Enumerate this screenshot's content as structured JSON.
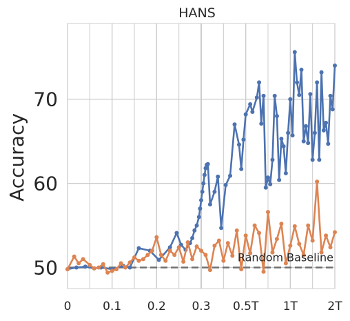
{
  "chart_data": {
    "type": "line",
    "title": "HANS",
    "ylabel": "Accuracy",
    "xlabel": "",
    "ylim": [
      47.5,
      79
    ],
    "yticks": [
      50,
      60,
      70
    ],
    "xtick_labels": [
      "0",
      "0.1",
      "0.2",
      "0.3",
      "0.5T",
      "1T",
      "2T"
    ],
    "xtick_positions": [
      0,
      2,
      4,
      6,
      8,
      10,
      12
    ],
    "xlim": [
      0,
      12
    ],
    "grid": true,
    "baseline": {
      "label": "Random Baseline",
      "value": 50
    },
    "colors": {
      "blue": "#4c72b0",
      "orange": "#dd8452",
      "baseline": "#707070",
      "grid": "#cccccc"
    },
    "series": [
      {
        "color": "#4c72b0",
        "x": [
          0.0,
          0.4,
          0.8,
          1.2,
          1.5,
          2.0,
          2.5,
          2.8,
          3.2,
          3.7,
          4.1,
          4.6,
          4.9,
          5.1,
          5.3,
          5.5,
          5.6,
          5.7,
          5.8,
          5.9,
          5.95,
          6.0,
          6.05,
          6.1,
          6.15,
          6.2,
          6.25,
          6.3,
          6.4,
          6.6,
          6.75,
          6.9,
          7.1,
          7.3,
          7.5,
          7.7,
          7.8,
          7.9,
          8.0,
          8.2,
          8.3,
          8.5,
          8.6,
          8.7,
          8.8,
          8.9,
          9.0,
          9.1,
          9.2,
          9.3,
          9.4,
          9.5,
          9.6,
          9.7,
          9.8,
          9.9,
          10.0,
          10.1,
          10.2,
          10.3,
          10.4,
          10.5,
          10.6,
          10.7,
          10.8,
          10.9,
          11.0,
          11.1,
          11.2,
          11.3,
          11.4,
          11.5,
          11.6,
          11.7,
          11.8,
          11.9,
          12.0
        ],
        "y": [
          49.8,
          50.0,
          50.1,
          49.9,
          50.0,
          49.8,
          50.2,
          50.0,
          52.3,
          52.0,
          50.9,
          52.4,
          54.1,
          52.7,
          52.1,
          52.9,
          53.5,
          54.4,
          55.0,
          56.0,
          57.0,
          58.0,
          59.0,
          60.0,
          61.0,
          61.8,
          62.2,
          62.3,
          57.5,
          59.0,
          60.8,
          54.7,
          59.8,
          60.9,
          67.0,
          64.6,
          61.7,
          65.2,
          68.2,
          69.4,
          68.5,
          70.2,
          72.0,
          67.1,
          70.4,
          59.5,
          60.7,
          59.9,
          62.8,
          70.4,
          68.0,
          60.4,
          65.3,
          64.4,
          61.2,
          66.0,
          70.0,
          65.7,
          75.6,
          72.0,
          70.5,
          73.5,
          65.0,
          66.8,
          64.8,
          70.6,
          62.8,
          66.0,
          72.0,
          62.8,
          73.2,
          66.3,
          67.2,
          64.7,
          70.4,
          68.8,
          74.0
        ]
      },
      {
        "color": "#dd8452",
        "x": [
          0.0,
          0.3,
          0.5,
          0.7,
          1.0,
          1.2,
          1.4,
          1.6,
          1.8,
          2.0,
          2.2,
          2.4,
          2.6,
          2.8,
          3.0,
          3.2,
          3.4,
          3.6,
          3.8,
          4.0,
          4.2,
          4.4,
          4.6,
          4.8,
          5.0,
          5.2,
          5.4,
          5.6,
          5.8,
          6.0,
          6.2,
          6.4,
          6.6,
          6.8,
          7.0,
          7.2,
          7.4,
          7.6,
          7.8,
          8.0,
          8.2,
          8.4,
          8.6,
          8.8,
          9.0,
          9.2,
          9.4,
          9.6,
          9.8,
          10.0,
          10.2,
          10.4,
          10.6,
          10.8,
          11.0,
          11.2,
          11.4,
          11.6,
          11.8,
          12.0
        ],
        "y": [
          49.8,
          51.3,
          50.5,
          51.0,
          50.3,
          49.9,
          50.0,
          50.4,
          49.4,
          49.6,
          49.8,
          50.5,
          50.0,
          50.6,
          51.2,
          50.8,
          51.0,
          51.5,
          52.0,
          53.6,
          51.5,
          50.8,
          52.0,
          51.5,
          52.4,
          50.7,
          53.0,
          51.0,
          52.5,
          52.0,
          51.5,
          49.7,
          52.6,
          53.2,
          50.8,
          52.9,
          51.4,
          54.4,
          49.8,
          53.8,
          51.7,
          55.0,
          54.1,
          49.5,
          56.6,
          51.8,
          53.4,
          55.2,
          50.5,
          52.6,
          54.9,
          52.8,
          51.5,
          55.0,
          53.2,
          60.2,
          51.8,
          53.8,
          52.4,
          54.2
        ]
      }
    ]
  }
}
